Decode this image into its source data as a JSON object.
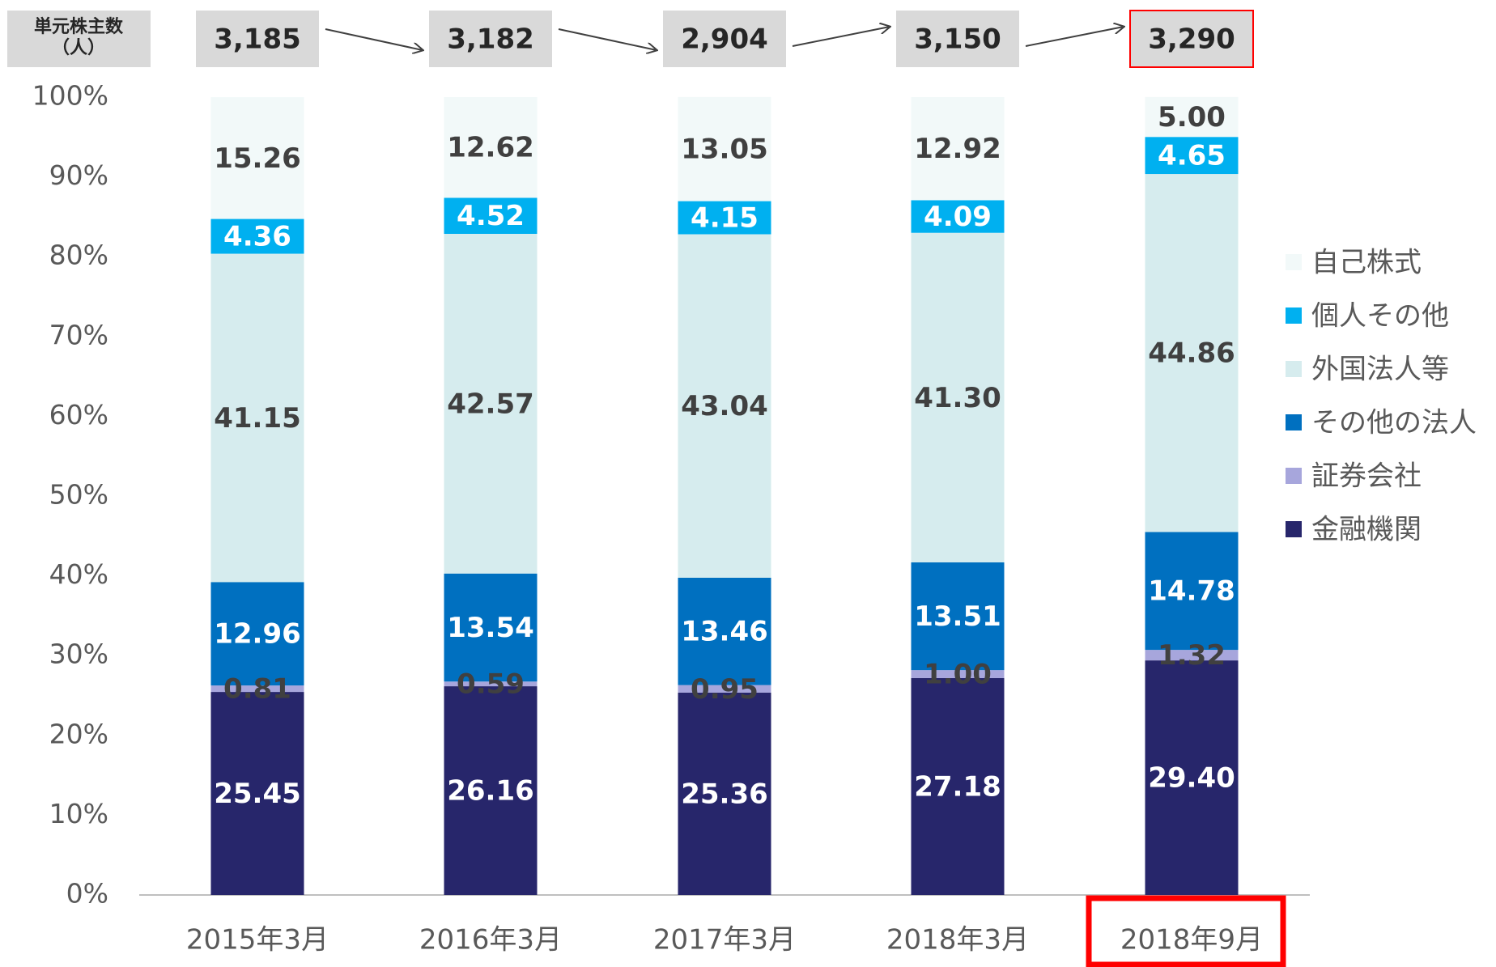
{
  "chart_data": {
    "type": "stacked_bar",
    "categories": [
      "2015年3月",
      "2016年3月",
      "2017年3月",
      "2018年3月",
      "2018年9月"
    ],
    "series": [
      {
        "name": "金融機関",
        "color": "#27266b",
        "values": [
          25.45,
          26.16,
          25.36,
          27.18,
          29.4
        ],
        "value_labels": [
          "25.45",
          "26.16",
          "25.36",
          "27.18",
          "29.40"
        ]
      },
      {
        "name": "証券会社",
        "color": "#a7a6dc",
        "values": [
          0.81,
          0.59,
          0.95,
          1.0,
          1.32
        ],
        "value_labels": [
          "0.81",
          "0.59",
          "0.95",
          "1.00",
          "1.32"
        ]
      },
      {
        "name": "その他の法人",
        "color": "#0070c0",
        "values": [
          12.96,
          13.54,
          13.46,
          13.51,
          14.78
        ],
        "value_labels": [
          "12.96",
          "13.54",
          "13.46",
          "13.51",
          "14.78"
        ]
      },
      {
        "name": "外国法人等",
        "color": "#d6ecee",
        "values": [
          41.15,
          42.57,
          43.04,
          41.3,
          44.86
        ],
        "value_labels": [
          "41.15",
          "42.57",
          "43.04",
          "41.30",
          "44.86"
        ]
      },
      {
        "name": "個人その他",
        "color": "#00b0f0",
        "values": [
          4.36,
          4.52,
          4.15,
          4.09,
          4.65
        ],
        "value_labels": [
          "4.36",
          "4.52",
          "4.15",
          "4.09",
          "4.65"
        ]
      },
      {
        "name": "自己株式",
        "color": "#f2f9f9",
        "values": [
          15.26,
          12.62,
          13.05,
          12.92,
          5.0
        ],
        "value_labels": [
          "15.26",
          "12.62",
          "13.05",
          "12.92",
          "5.00"
        ]
      }
    ],
    "ylim": [
      0,
      100
    ],
    "yticks": [
      {
        "value": 0,
        "label": "0%"
      },
      {
        "value": 10,
        "label": "10%"
      },
      {
        "value": 20,
        "label": "20%"
      },
      {
        "value": 30,
        "label": "30%"
      },
      {
        "value": 40,
        "label": "40%"
      },
      {
        "value": 50,
        "label": "50%"
      },
      {
        "value": 60,
        "label": "60%"
      },
      {
        "value": 70,
        "label": "70%"
      },
      {
        "value": 80,
        "label": "80%"
      },
      {
        "value": 90,
        "label": "90%"
      },
      {
        "value": 100,
        "label": "100%"
      }
    ],
    "legend": "right",
    "shareholders": {
      "label_lines": [
        "単元株主数",
        "（人）"
      ],
      "values": [
        3185,
        3182,
        2904,
        3150,
        3290
      ],
      "value_labels": [
        "3,185",
        "3,182",
        "2,904",
        "3,150",
        "3,290"
      ]
    }
  }
}
